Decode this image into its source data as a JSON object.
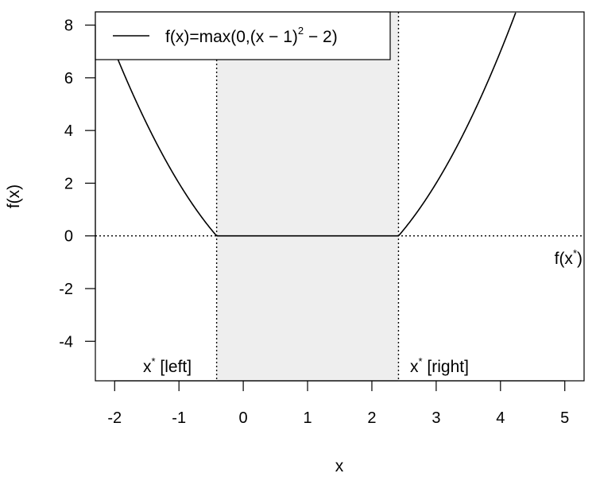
{
  "chart_data": {
    "type": "line",
    "xlabel": "x",
    "ylabel": "f(x)",
    "xlim": [
      -2.3,
      5.3
    ],
    "ylim": [
      -5.5,
      8.5
    ],
    "xticks": [
      -2,
      -1,
      0,
      1,
      2,
      3,
      4,
      5
    ],
    "yticks": [
      -4,
      -2,
      0,
      2,
      4,
      6,
      8
    ],
    "xtick_labels": [
      "-2",
      "-1",
      "0",
      "1",
      "2",
      "3",
      "4",
      "5"
    ],
    "ytick_labels": [
      "-4",
      "-2",
      "0",
      "2",
      "4",
      "6",
      "8"
    ],
    "series": [
      {
        "name": "f(x)=max(0,(x − 1)² − 2)",
        "function": "max(0,(x-1)^2-2)",
        "x_range": [
          -2.3,
          5.3
        ]
      }
    ],
    "vlines": [
      -0.414,
      2.414
    ],
    "hline": 0,
    "shaded_region": [
      -0.414,
      2.414
    ],
    "legend": {
      "position": "top-left",
      "label_main": "f(x)=max(0,(x − 1)",
      "label_sup": "2",
      "label_tail": " − 2)"
    },
    "annotations": {
      "x_left_base": "x",
      "x_left_sup": "*",
      "x_left_tail": " [left]",
      "x_right_base": "x",
      "x_right_sup": "*",
      "x_right_tail": " [right]",
      "fx_base": "f(x",
      "fx_sup": "*",
      "fx_tail": ")"
    },
    "colors": {
      "line": "#000000",
      "shade": "#eeeeee",
      "frame": "#000000"
    }
  }
}
